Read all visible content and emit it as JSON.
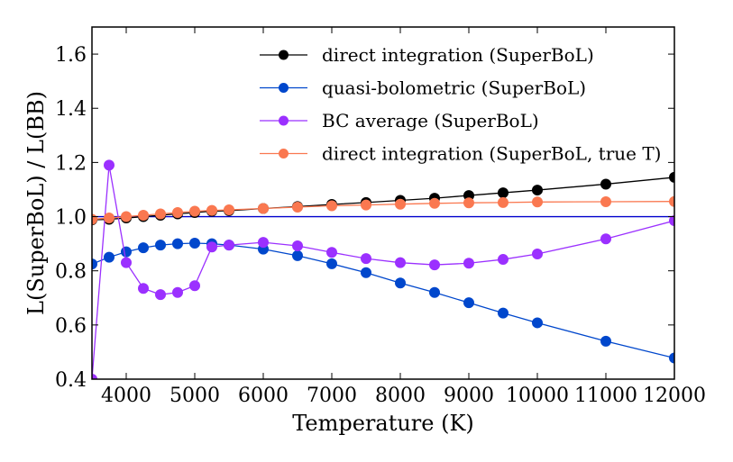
{
  "chart_data": {
    "type": "line",
    "title": "",
    "xlabel": "Temperature (K)",
    "ylabel": "L(SuperBoL) / L(BB)",
    "xlim": [
      3500,
      12000
    ],
    "ylim": [
      0.4,
      1.7
    ],
    "xticks": [
      4000,
      5000,
      6000,
      7000,
      8000,
      9000,
      10000,
      11000,
      12000
    ],
    "yticks": [
      0.4,
      0.6,
      0.8,
      1.0,
      1.2,
      1.4,
      1.6
    ],
    "xtick_labels": [
      "4000",
      "5000",
      "6000",
      "7000",
      "8000",
      "9000",
      "10000",
      "11000",
      "12000"
    ],
    "ytick_labels": [
      "0.4",
      "0.6",
      "0.8",
      "1.0",
      "1.2",
      "1.4",
      "1.6"
    ],
    "grid": false,
    "legend_position": "top-right",
    "reference_line": {
      "y": 1.0,
      "color": "#0000cc"
    },
    "series": [
      {
        "name": "direct integration (SuperBoL)",
        "color": "#000000",
        "x": [
          3500,
          3750,
          4000,
          4250,
          4500,
          4750,
          5000,
          5250,
          5500,
          6000,
          6500,
          7000,
          7500,
          8000,
          8500,
          9000,
          9500,
          10000,
          11000,
          12000
        ],
        "values": [
          0.988,
          0.99,
          0.995,
          1.0,
          1.005,
          1.01,
          1.015,
          1.02,
          1.022,
          1.03,
          1.037,
          1.045,
          1.052,
          1.06,
          1.068,
          1.078,
          1.088,
          1.098,
          1.12,
          1.145
        ]
      },
      {
        "name": "quasi-bolometric (SuperBoL)",
        "color": "#0047cc",
        "x": [
          3500,
          3750,
          4000,
          4250,
          4500,
          4750,
          5000,
          5250,
          5500,
          6000,
          6500,
          7000,
          7500,
          8000,
          8500,
          9000,
          9500,
          10000,
          11000,
          12000
        ],
        "values": [
          0.825,
          0.85,
          0.87,
          0.885,
          0.895,
          0.9,
          0.902,
          0.9,
          0.895,
          0.88,
          0.856,
          0.826,
          0.793,
          0.755,
          0.72,
          0.682,
          0.644,
          0.608,
          0.54,
          0.478
        ]
      },
      {
        "name": "BC average (SuperBoL)",
        "color": "#9b30ff",
        "x": [
          3500,
          3750,
          4000,
          4250,
          4500,
          4750,
          5000,
          5250,
          5500,
          6000,
          6500,
          7000,
          7500,
          8000,
          8500,
          9000,
          9500,
          10000,
          11000,
          12000
        ],
        "values": [
          0.4,
          1.19,
          0.83,
          0.735,
          0.712,
          0.72,
          0.745,
          0.888,
          0.895,
          0.905,
          0.892,
          0.868,
          0.845,
          0.83,
          0.822,
          0.828,
          0.842,
          0.862,
          0.918,
          0.985
        ]
      },
      {
        "name": "direct integration (SuperBoL, true T)",
        "color": "#fa7850",
        "x": [
          3500,
          3750,
          4000,
          4250,
          4500,
          4750,
          5000,
          5250,
          5500,
          6000,
          6500,
          7000,
          7500,
          8000,
          8500,
          9000,
          9500,
          10000,
          11000,
          12000
        ],
        "values": [
          0.99,
          0.995,
          1.0,
          1.005,
          1.01,
          1.015,
          1.02,
          1.023,
          1.025,
          1.03,
          1.035,
          1.04,
          1.043,
          1.046,
          1.049,
          1.051,
          1.052,
          1.054,
          1.055,
          1.056
        ]
      }
    ]
  }
}
